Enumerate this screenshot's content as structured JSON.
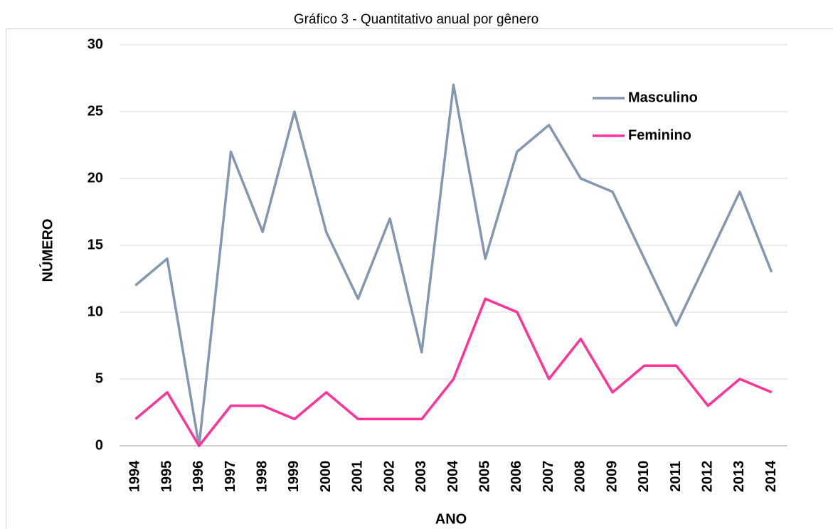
{
  "chart_data": {
    "type": "line",
    "title": "Gráfico 3 - Quantitativo anual por gênero",
    "x_label": "ANO",
    "y_label": "NÚMERO",
    "categories": [
      "1994",
      "1995",
      "1996",
      "1997",
      "1998",
      "1999",
      "2000",
      "2001",
      "2002",
      "2003",
      "2004",
      "2005",
      "2006",
      "2007",
      "2008",
      "2009",
      "2010",
      "2011",
      "2012",
      "2013",
      "2014"
    ],
    "series": [
      {
        "name": "Masculino",
        "color": "#8497b0",
        "values": [
          12,
          14,
          0,
          22,
          16,
          25,
          16,
          11,
          17,
          7,
          27,
          14,
          22,
          24,
          20,
          19,
          14,
          9,
          14,
          19,
          13
        ]
      },
      {
        "name": "Feminino",
        "color": "#ff3399",
        "values": [
          2,
          4,
          0,
          3,
          3,
          2,
          4,
          2,
          2,
          2,
          5,
          11,
          10,
          5,
          8,
          4,
          6,
          6,
          3,
          5,
          4
        ]
      }
    ],
    "ylim": [
      0,
      30
    ],
    "yticks": [
      0,
      5,
      10,
      15,
      20,
      25,
      30
    ],
    "grid": true,
    "legend": "upper right"
  }
}
